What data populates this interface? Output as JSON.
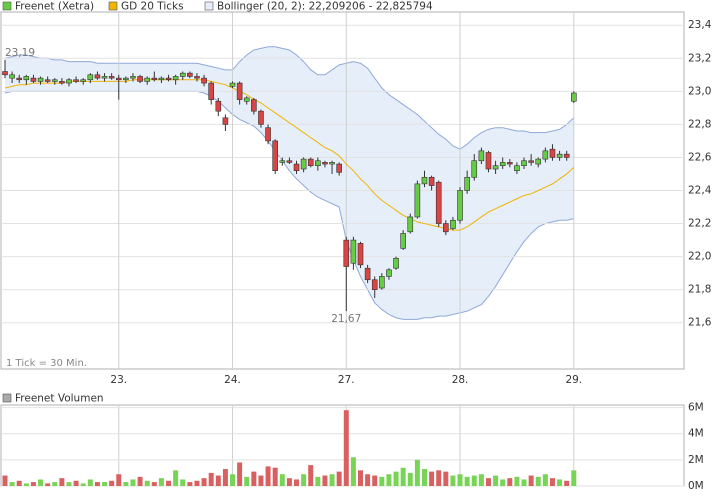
{
  "chart_data": [
    {
      "type": "candlestick",
      "name": "Freenet (Xetra)",
      "up_color": "#66cc44",
      "down_color": "#d94444",
      "categories": [
        null,
        null,
        null,
        null,
        null,
        null,
        null,
        null,
        null,
        null,
        null,
        null,
        null,
        null,
        null,
        null,
        "23.",
        null,
        null,
        null,
        null,
        null,
        null,
        null,
        null,
        null,
        null,
        null,
        null,
        null,
        null,
        null,
        "24.",
        null,
        null,
        null,
        null,
        null,
        null,
        null,
        null,
        null,
        null,
        null,
        null,
        null,
        null,
        null,
        "27.",
        null,
        null,
        null,
        null,
        null,
        null,
        null,
        null,
        null,
        null,
        null,
        null,
        null,
        null,
        null,
        "28.",
        null,
        null,
        null,
        null,
        null,
        null,
        null,
        null,
        null,
        null,
        null,
        null,
        null,
        null,
        null,
        "29."
      ],
      "open": [
        23.12,
        23.08,
        23.08,
        23.07,
        23.08,
        23.06,
        23.07,
        23.06,
        23.06,
        23.05,
        23.07,
        23.06,
        23.07,
        23.1,
        23.08,
        23.09,
        23.08,
        23.07,
        23.08,
        23.09,
        23.06,
        23.08,
        23.07,
        23.08,
        23.07,
        23.09,
        23.11,
        23.09,
        23.08,
        23.05,
        22.94,
        22.84,
        23.03,
        23.05,
        22.94,
        22.95,
        22.88,
        22.78,
        22.7,
        22.57,
        22.58,
        22.56,
        22.53,
        22.59,
        22.55,
        22.57,
        22.56,
        22.56,
        22.1,
        21.96,
        22.08,
        21.93,
        21.86,
        21.81,
        21.88,
        21.93,
        22.05,
        22.15,
        22.24,
        22.44,
        22.48,
        22.45,
        22.2,
        22.17,
        22.22,
        22.4,
        22.48,
        22.58,
        22.63,
        22.53,
        22.55,
        22.57,
        22.52,
        22.55,
        22.58,
        22.56,
        22.59,
        22.65,
        22.6,
        22.62,
        22.94
      ],
      "high": [
        23.19,
        23.12,
        23.1,
        23.1,
        23.1,
        23.09,
        23.09,
        23.08,
        23.08,
        23.08,
        23.09,
        23.08,
        23.11,
        23.12,
        23.11,
        23.11,
        23.1,
        23.09,
        23.11,
        23.1,
        23.09,
        23.12,
        23.09,
        23.1,
        23.1,
        23.12,
        23.12,
        23.11,
        23.1,
        23.06,
        22.96,
        22.86,
        23.06,
        23.06,
        22.97,
        22.96,
        22.89,
        22.8,
        22.71,
        22.6,
        22.6,
        22.58,
        22.6,
        22.6,
        22.6,
        22.58,
        22.58,
        22.57,
        22.12,
        22.12,
        22.09,
        21.95,
        21.88,
        21.9,
        21.93,
        22.0,
        22.16,
        22.26,
        22.46,
        22.52,
        22.49,
        22.46,
        22.22,
        22.24,
        22.42,
        22.52,
        22.62,
        22.66,
        22.64,
        22.58,
        22.6,
        22.59,
        22.57,
        22.6,
        22.62,
        22.6,
        22.66,
        22.68,
        22.64,
        22.64,
        23.0
      ],
      "low": [
        23.08,
        23.05,
        23.05,
        23.04,
        23.05,
        23.04,
        23.05,
        23.04,
        23.04,
        23.03,
        23.05,
        23.04,
        23.05,
        23.07,
        23.06,
        23.07,
        22.95,
        23.05,
        23.06,
        23.05,
        23.04,
        23.06,
        23.05,
        23.06,
        23.04,
        23.07,
        23.08,
        23.06,
        23.03,
        22.92,
        22.85,
        22.76,
        23.02,
        22.92,
        22.92,
        22.86,
        22.78,
        22.68,
        22.5,
        22.55,
        22.56,
        22.5,
        22.51,
        22.54,
        22.52,
        22.54,
        22.5,
        22.49,
        21.67,
        21.92,
        21.93,
        21.84,
        21.75,
        21.8,
        21.86,
        21.92,
        22.04,
        22.14,
        22.23,
        22.42,
        22.4,
        22.18,
        22.13,
        22.16,
        22.2,
        22.38,
        22.46,
        22.56,
        22.51,
        22.5,
        22.53,
        22.54,
        22.5,
        22.53,
        22.55,
        22.54,
        22.57,
        22.58,
        22.58,
        22.58,
        22.93
      ],
      "close": [
        23.1,
        23.1,
        23.07,
        23.09,
        23.06,
        23.08,
        23.06,
        23.07,
        23.05,
        23.07,
        23.06,
        23.07,
        23.1,
        23.08,
        23.09,
        23.08,
        23.07,
        23.08,
        23.09,
        23.06,
        23.08,
        23.07,
        23.08,
        23.07,
        23.09,
        23.11,
        23.09,
        23.08,
        23.05,
        22.95,
        22.88,
        22.8,
        23.05,
        22.95,
        22.96,
        22.88,
        22.8,
        22.7,
        22.52,
        22.58,
        22.57,
        22.52,
        22.59,
        22.55,
        22.58,
        22.56,
        22.57,
        22.51,
        21.94,
        22.1,
        21.95,
        21.86,
        21.8,
        21.88,
        21.92,
        21.99,
        22.14,
        22.24,
        22.44,
        22.48,
        22.43,
        22.2,
        22.15,
        22.22,
        22.4,
        22.48,
        22.58,
        22.64,
        22.53,
        22.55,
        22.57,
        22.56,
        22.55,
        22.58,
        22.57,
        22.59,
        22.64,
        22.6,
        22.62,
        22.6,
        22.99
      ],
      "overlays": [
        {
          "name": "GD 20 Ticks",
          "color": "#f0b400",
          "values": [
            23.02,
            23.03,
            23.04,
            23.04,
            23.05,
            23.05,
            23.05,
            23.05,
            23.05,
            23.06,
            23.06,
            23.06,
            23.06,
            23.06,
            23.06,
            23.06,
            23.06,
            23.06,
            23.07,
            23.07,
            23.07,
            23.07,
            23.07,
            23.07,
            23.07,
            23.07,
            23.07,
            23.07,
            23.07,
            23.06,
            23.05,
            23.04,
            23.02,
            23.0,
            22.98,
            22.95,
            22.93,
            22.9,
            22.87,
            22.84,
            22.81,
            22.78,
            22.75,
            22.72,
            22.69,
            22.66,
            22.64,
            22.61,
            22.56,
            22.52,
            22.47,
            22.43,
            22.38,
            22.34,
            22.31,
            22.28,
            22.25,
            22.23,
            22.21,
            22.2,
            22.19,
            22.18,
            22.17,
            22.16,
            22.16,
            22.18,
            22.21,
            22.24,
            22.27,
            22.29,
            22.31,
            22.33,
            22.35,
            22.37,
            22.38,
            22.4,
            22.42,
            22.44,
            22.47,
            22.5,
            22.54
          ]
        },
        {
          "name": "Bollinger (20, 2): 22,209206 - 22,825794",
          "color": "#8fa8d8",
          "fill": "#e6eefa",
          "upper": [
            23.2,
            23.21,
            23.22,
            23.22,
            23.21,
            23.2,
            23.2,
            23.19,
            23.19,
            23.18,
            23.18,
            23.18,
            23.18,
            23.17,
            23.17,
            23.17,
            23.17,
            23.17,
            23.17,
            23.17,
            23.17,
            23.17,
            23.17,
            23.17,
            23.17,
            23.17,
            23.17,
            23.17,
            23.16,
            23.15,
            23.14,
            23.13,
            23.13,
            23.18,
            23.22,
            23.25,
            23.26,
            23.27,
            23.27,
            23.26,
            23.25,
            23.22,
            23.18,
            23.13,
            23.1,
            23.1,
            23.13,
            23.16,
            23.17,
            23.18,
            23.17,
            23.14,
            23.08,
            23.02,
            22.98,
            22.95,
            22.92,
            22.89,
            22.86,
            22.82,
            22.78,
            22.74,
            22.71,
            22.67,
            22.65,
            22.68,
            22.72,
            22.75,
            22.77,
            22.78,
            22.78,
            22.77,
            22.76,
            22.76,
            22.75,
            22.75,
            22.75,
            22.76,
            22.77,
            22.8,
            22.84
          ],
          "lower": [
            22.99,
            23.0,
            23.0,
            23.0,
            23.0,
            23.0,
            23.0,
            23.0,
            23.0,
            23.0,
            23.0,
            23.0,
            23.0,
            23.0,
            23.0,
            23.0,
            23.0,
            23.0,
            23.0,
            23.0,
            23.0,
            23.0,
            23.0,
            23.0,
            23.0,
            23.0,
            23.0,
            23.0,
            22.99,
            22.97,
            22.94,
            22.9,
            22.86,
            22.83,
            22.81,
            22.79,
            22.75,
            22.7,
            22.64,
            22.58,
            22.52,
            22.47,
            22.43,
            22.39,
            22.36,
            22.34,
            22.32,
            22.3,
            22.1,
            21.98,
            21.88,
            21.8,
            21.72,
            21.68,
            21.65,
            21.63,
            21.62,
            21.62,
            21.62,
            21.63,
            21.63,
            21.64,
            21.64,
            21.65,
            21.66,
            21.67,
            21.69,
            21.71,
            21.76,
            21.82,
            21.89,
            21.96,
            22.03,
            22.09,
            22.14,
            22.18,
            22.2,
            22.21,
            22.22,
            22.22,
            22.23
          ]
        }
      ],
      "ylim": [
        21.32,
        23.48
      ],
      "yticks": [
        {
          "value": 21.6,
          "label": "21,6"
        },
        {
          "value": 21.8,
          "label": "21,8"
        },
        {
          "value": 22.0,
          "label": "22,0"
        },
        {
          "value": 22.2,
          "label": "22,2"
        },
        {
          "value": 22.4,
          "label": "22,4"
        },
        {
          "value": 22.6,
          "label": "22,6"
        },
        {
          "value": 22.8,
          "label": "22,8"
        },
        {
          "value": 23.0,
          "label": "23,0"
        },
        {
          "value": 23.2,
          "label": "23,2"
        },
        {
          "value": 23.4,
          "label": "23,4"
        }
      ],
      "annotations": [
        {
          "text": "23,19",
          "y": 23.19
        },
        {
          "text": "21,67",
          "y": 21.67
        }
      ],
      "footnote": "1 Tick = 30 Min.",
      "grid": true
    },
    {
      "type": "bar",
      "series": [
        {
          "name": "Freenet Volumen",
          "color": "#aaaaaa",
          "values": [
            0.8,
            0.3,
            0.4,
            0.2,
            0.3,
            0.5,
            0.2,
            0.3,
            0.6,
            0.3,
            0.4,
            0.2,
            0.5,
            0.3,
            0.3,
            0.4,
            0.9,
            0.3,
            0.5,
            0.7,
            0.4,
            0.3,
            0.6,
            0.4,
            1.2,
            0.5,
            0.3,
            0.4,
            0.6,
            1.0,
            0.8,
            1.3,
            0.9,
            1.8,
            0.7,
            1.1,
            0.8,
            1.5,
            1.4,
            0.9,
            0.6,
            0.5,
            0.9,
            1.6,
            0.7,
            0.8,
            0.9,
            1.1,
            5.8,
            2.2,
            1.2,
            0.9,
            0.8,
            0.7,
            0.9,
            1.1,
            1.4,
            1.0,
            2.0,
            1.3,
            1.1,
            1.2,
            1.1,
            0.8,
            0.9,
            0.7,
            0.8,
            0.9,
            0.6,
            0.8,
            0.5,
            0.6,
            0.7,
            0.5,
            0.8,
            0.7,
            0.9,
            0.6,
            0.5,
            0.4,
            1.2
          ]
        }
      ],
      "up_color": "#77d455",
      "down_color": "#d96060",
      "ylim": [
        0,
        6.2
      ],
      "yticks": [
        {
          "value": 0,
          "label": "0M"
        },
        {
          "value": 2,
          "label": "2M"
        },
        {
          "value": 4,
          "label": "4M"
        },
        {
          "value": 6,
          "label": "6M"
        }
      ],
      "grid": true
    }
  ]
}
